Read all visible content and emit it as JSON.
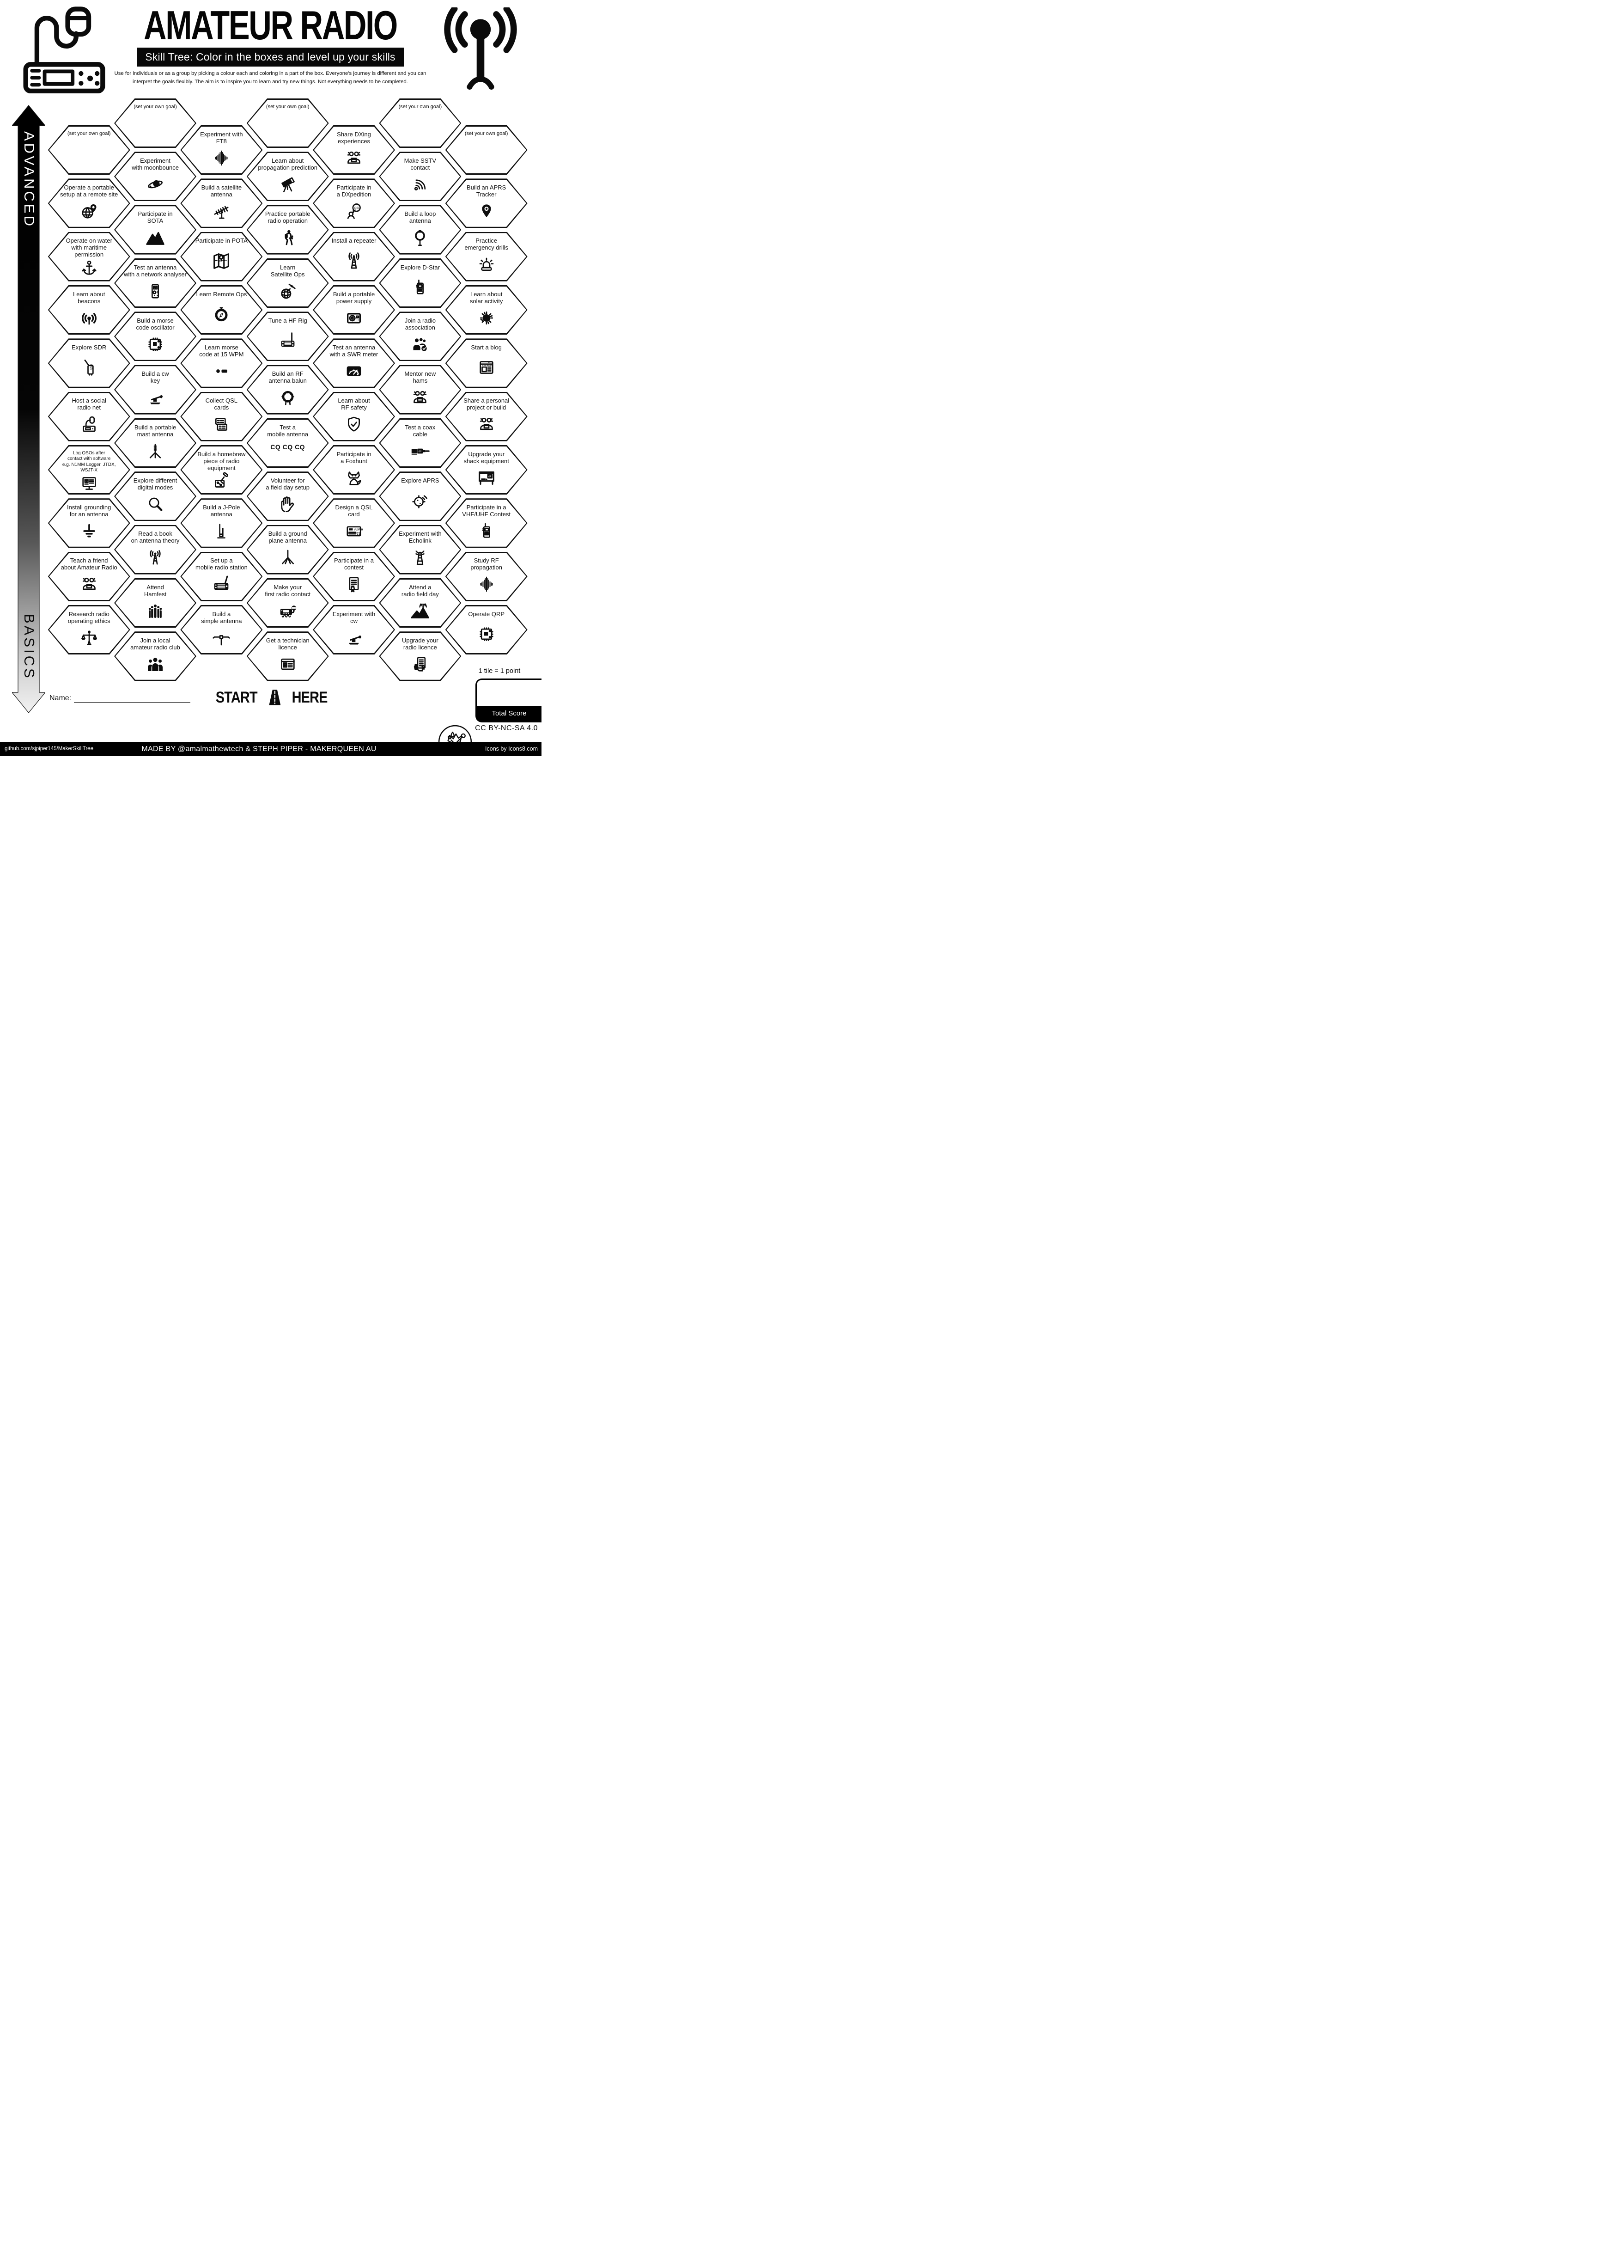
{
  "header": {
    "title": "AMATEUR RADIO",
    "subtitle": "Skill Tree:  Color in the boxes and level up your skills",
    "description": "Use for individuals or as a group by picking a colour each and coloring in a part of the box.  Everyone's journey is different and you can\ninterpret the goals flexibly.  The aim is to inspire you to learn and try new things. Not everything needs to be completed."
  },
  "axis": {
    "top": "ADVANCED",
    "bottom": "BASICS"
  },
  "grid": {
    "cells": [
      {
        "col": 1,
        "row": 0,
        "label": "(set your own goal)",
        "icon": "",
        "variant": "goal"
      },
      {
        "col": 1,
        "row": 1,
        "label": "Operate a portable\nsetup at a remote site",
        "icon": "globe-pin"
      },
      {
        "col": 1,
        "row": 2,
        "label": "Operate on water\nwith maritime permission",
        "icon": "anchor"
      },
      {
        "col": 1,
        "row": 3,
        "label": "Learn about\nbeacons",
        "icon": "beacon"
      },
      {
        "col": 1,
        "row": 4,
        "label": "Explore SDR",
        "icon": "sdr"
      },
      {
        "col": 1,
        "row": 5,
        "label": "Host a social\nradio net",
        "icon": "mic-radio"
      },
      {
        "col": 1,
        "row": 6,
        "label": "Log QSOs after\ncontact with software\ne.g. N1MM Logger, JTDX, WSJT-X",
        "icon": "monitor",
        "variant": "tiny"
      },
      {
        "col": 1,
        "row": 7,
        "label": "Install grounding\nfor an antenna",
        "icon": "ground"
      },
      {
        "col": 1,
        "row": 8,
        "label": "Teach a friend\nabout Amateur Radio",
        "icon": "people-laptop"
      },
      {
        "col": 1,
        "row": 9,
        "label": "Research radio\noperating ethics",
        "icon": "scales"
      },
      {
        "col": 2,
        "row": 0,
        "label": "(set your own goal)",
        "icon": "",
        "variant": "goal"
      },
      {
        "col": 2,
        "row": 1,
        "label": "Experiment\nwith moonbounce",
        "icon": "moon"
      },
      {
        "col": 2,
        "row": 2,
        "label": "Participate in\nSOTA",
        "icon": "mountain"
      },
      {
        "col": 2,
        "row": 3,
        "label": "Test an antenna\nwith a network analyser",
        "icon": "analyser"
      },
      {
        "col": 2,
        "row": 4,
        "label": "Build a morse\ncode oscillator",
        "icon": "board"
      },
      {
        "col": 2,
        "row": 5,
        "label": "Build a cw\nkey",
        "icon": "morse-key"
      },
      {
        "col": 2,
        "row": 6,
        "label": "Build a portable\nmast antenna",
        "icon": "mast"
      },
      {
        "col": 2,
        "row": 7,
        "label": "Explore different\ndigital modes",
        "icon": "magnifier"
      },
      {
        "col": 2,
        "row": 8,
        "label": "Read a book\non antenna theory",
        "icon": "antenna-rays"
      },
      {
        "col": 2,
        "row": 9,
        "label": "Attend\nHamfest",
        "icon": "crowd"
      },
      {
        "col": 2,
        "row": 10,
        "label": "Join a local\namateur radio club",
        "icon": "group3"
      },
      {
        "col": 3,
        "row": 0,
        "label": "Experiment with\nFT8",
        "icon": "wave"
      },
      {
        "col": 3,
        "row": 1,
        "label": "Build a satellite\nantenna",
        "icon": "yagi"
      },
      {
        "col": 3,
        "row": 2,
        "label": "Participate in POTA",
        "icon": "map"
      },
      {
        "col": 3,
        "row": 3,
        "label": "Learn Remote Ops",
        "icon": "compass"
      },
      {
        "col": 3,
        "row": 4,
        "label": "Learn morse\ncode at 15 WPM",
        "icon": "morse"
      },
      {
        "col": 3,
        "row": 5,
        "label": "Collect QSL\ncards",
        "icon": "cards"
      },
      {
        "col": 3,
        "row": 6,
        "label": "Build a homebrew\npiece of radio equipment",
        "icon": "solder"
      },
      {
        "col": 3,
        "row": 7,
        "label": "Build a J-Pole\nantenna",
        "icon": "jpole"
      },
      {
        "col": 3,
        "row": 8,
        "label": "Set up a\nmobile radio station",
        "icon": "mobile-radio"
      },
      {
        "col": 3,
        "row": 9,
        "label": "Build a\nsimple antenna",
        "icon": "dipole"
      },
      {
        "col": 4,
        "row": 0,
        "label": "(set your own goal)",
        "icon": "",
        "variant": "goal"
      },
      {
        "col": 4,
        "row": 1,
        "label": "Learn about\npropagation prediction",
        "icon": "telescope"
      },
      {
        "col": 4,
        "row": 2,
        "label": "Practice portable\nradio operation",
        "icon": "hiker"
      },
      {
        "col": 4,
        "row": 3,
        "label": "Learn\nSatellite Ops",
        "icon": "sat-globe"
      },
      {
        "col": 4,
        "row": 4,
        "label": "Tune a HF Rig",
        "icon": "hf-rig"
      },
      {
        "col": 4,
        "row": 5,
        "label": "Build an RF\nantenna balun",
        "icon": "balun"
      },
      {
        "col": 4,
        "row": 6,
        "label": "Test a\nmobile antenna",
        "icon": "",
        "sublabel": "CQ CQ CQ"
      },
      {
        "col": 4,
        "row": 7,
        "label": "Volunteer for\na field day setup",
        "icon": "hands"
      },
      {
        "col": 4,
        "row": 8,
        "label": "Build a ground\nplane antenna",
        "icon": "gplane"
      },
      {
        "col": 4,
        "row": 9,
        "label": "Make your\nfirst radio contact",
        "icon": "radio-mic"
      },
      {
        "col": 4,
        "row": 10,
        "label": "Get a technician\nlicence",
        "icon": "id-card"
      },
      {
        "col": 5,
        "row": 0,
        "label": "Share DXing\nexperiences",
        "icon": "people-laptop"
      },
      {
        "col": 5,
        "row": 1,
        "label": "Participate in\na DXpedition",
        "icon": "qsl-bubble"
      },
      {
        "col": 5,
        "row": 2,
        "label": "Install a repeater",
        "icon": "repeater"
      },
      {
        "col": 5,
        "row": 3,
        "label": "Build a portable\npower supply",
        "icon": "psu"
      },
      {
        "col": 5,
        "row": 4,
        "label": "Test an antenna\nwith a SWR meter",
        "icon": "swr"
      },
      {
        "col": 5,
        "row": 5,
        "label": "Learn about\nRF safety",
        "icon": "shield"
      },
      {
        "col": 5,
        "row": 6,
        "label": "Participate in\na Foxhunt",
        "icon": "fox"
      },
      {
        "col": 5,
        "row": 7,
        "label": "Design a QSL\ncard",
        "icon": "qsl73"
      },
      {
        "col": 5,
        "row": 8,
        "label": "Participate in a\ncontest",
        "icon": "cert"
      },
      {
        "col": 5,
        "row": 9,
        "label": "Experiment with\ncw",
        "icon": "morse-key"
      },
      {
        "col": 6,
        "row": 0,
        "label": "(set your own goal)",
        "icon": "",
        "variant": "goal"
      },
      {
        "col": 6,
        "row": 1,
        "label": "Make SSTV\ncontact",
        "icon": "sstv"
      },
      {
        "col": 6,
        "row": 2,
        "label": "Build a loop\nantenna",
        "icon": "loop"
      },
      {
        "col": 6,
        "row": 3,
        "label": "Explore D-Star",
        "icon": "ht"
      },
      {
        "col": 6,
        "row": 4,
        "label": "Join a radio\nassociation",
        "icon": "group-check"
      },
      {
        "col": 6,
        "row": 5,
        "label": "Mentor new\nhams",
        "icon": "people-laptop"
      },
      {
        "col": 6,
        "row": 6,
        "label": "Test a coax\ncable",
        "icon": "coax"
      },
      {
        "col": 6,
        "row": 7,
        "label": "Explore APRS",
        "icon": "aprs"
      },
      {
        "col": 6,
        "row": 8,
        "label": "Experiment with\nEcholink",
        "icon": "echolink"
      },
      {
        "col": 6,
        "row": 9,
        "label": "Attend a\nradio field day",
        "icon": "fieldday"
      },
      {
        "col": 6,
        "row": 10,
        "label": "Upgrade your\nradio licence",
        "icon": "licence"
      },
      {
        "col": 7,
        "row": 0,
        "label": "(set your own goal)",
        "icon": "",
        "variant": "goal"
      },
      {
        "col": 7,
        "row": 1,
        "label": "Build an APRS\nTracker",
        "icon": "pin"
      },
      {
        "col": 7,
        "row": 2,
        "label": "Practice\nemergency drills",
        "icon": "siren"
      },
      {
        "col": 7,
        "row": 3,
        "label": "Learn about\nsolar activity",
        "icon": "sun"
      },
      {
        "col": 7,
        "row": 4,
        "label": "Start a blog",
        "icon": "blog"
      },
      {
        "col": 7,
        "row": 5,
        "label": "Share a personal\nproject or build",
        "icon": "people-laptop"
      },
      {
        "col": 7,
        "row": 6,
        "label": "Upgrade your\nshack equipment",
        "icon": "shack"
      },
      {
        "col": 7,
        "row": 7,
        "label": "Participate in a\nVHF/UHF Contest",
        "icon": "ht"
      },
      {
        "col": 7,
        "row": 8,
        "label": "Study RF\npropagation",
        "icon": "wave"
      },
      {
        "col": 7,
        "row": 9,
        "label": "Operate QRP",
        "icon": "board"
      }
    ]
  },
  "start": {
    "start": "START",
    "here": "HERE"
  },
  "name_label": "Name:",
  "score": {
    "note": "1 tile = 1 point",
    "label": "Total Score"
  },
  "license": "CC BY-NC-SA 4.0",
  "footer": {
    "left": "github.com/sjpiper145/MakerSkillTree",
    "center": "MADE BY @amalmathewtech & STEPH PIPER  -  MAKERQUEEN AU",
    "right": "Icons by Icons8.com"
  }
}
